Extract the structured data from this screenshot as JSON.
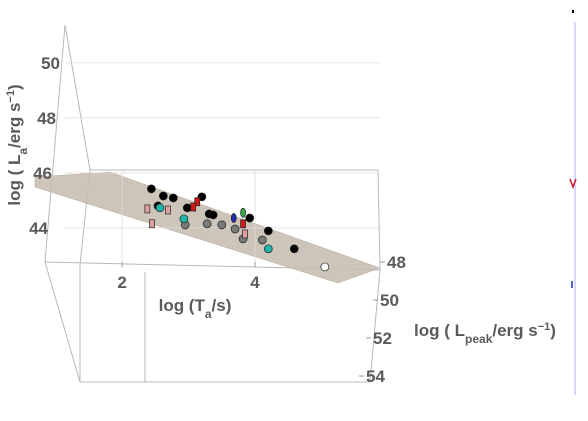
{
  "chart_data": {
    "type": "scatter3d",
    "x_label": [
      "log (T",
      "a",
      "/s)"
    ],
    "y_label": [
      "log ( L",
      "a",
      "/erg s",
      "−1",
      ")"
    ],
    "z_label": [
      "log ( L",
      "peak",
      "/erg s",
      "−1",
      ")"
    ],
    "xlim": [
      0.84,
      5.88
    ],
    "ylim": [
      42.76,
      51.4
    ],
    "zlim": [
      48,
      54
    ],
    "xticks": [
      2,
      4
    ],
    "yticks": [
      44,
      46,
      48,
      50
    ],
    "zticks": [
      48,
      50,
      52,
      54
    ],
    "grid": true,
    "series": [
      {
        "color": "#000000",
        "marker": "circle",
        "x": [
          2.44,
          2.62,
          2.77,
          2.54,
          2.98,
          3.2,
          3.31,
          3.37,
          3.92,
          4.2,
          4.59
        ],
        "y": [
          45.42,
          45.16,
          45.09,
          44.8,
          44.73,
          45.13,
          44.51,
          44.47,
          44.36,
          43.89,
          43.24
        ],
        "z": [
          48,
          48,
          48,
          48,
          48,
          48,
          48,
          48,
          48,
          48,
          48
        ]
      },
      {
        "color": "#d01818",
        "marker": "square",
        "x": [
          3.13,
          3.07,
          3.82
        ],
        "y": [
          44.95,
          44.76,
          44.15
        ],
        "z": [
          48,
          48,
          48
        ]
      },
      {
        "color": "#7a7a7a",
        "marker": "circle",
        "x": [
          3.28,
          3.5,
          3.7,
          3.82,
          4.11,
          2.95
        ],
        "y": [
          44.15,
          44.11,
          43.96,
          43.6,
          43.56,
          44.11
        ],
        "z": [
          48,
          48,
          48,
          48,
          48,
          48
        ]
      },
      {
        "color": "#1fb5a8",
        "marker": "circle",
        "x": [
          2.57,
          2.93,
          4.2
        ],
        "y": [
          44.73,
          44.33,
          43.24
        ],
        "z": [
          48,
          48,
          48
        ]
      },
      {
        "color": "#e0a0a0",
        "marker": "square",
        "x": [
          2.38,
          2.45,
          2.69,
          3.85
        ],
        "y": [
          44.69,
          44.15,
          44.65,
          43.78
        ],
        "z": [
          48,
          48,
          48,
          48
        ]
      },
      {
        "color": "#3aa845",
        "marker": "ellipse",
        "x": [
          3.82
        ],
        "y": [
          44.55
        ],
        "z": [
          48
        ]
      },
      {
        "color": "#1f2fb0",
        "marker": "ellipse",
        "x": [
          3.68
        ],
        "y": [
          44.36
        ],
        "z": [
          48
        ]
      },
      {
        "color": "#ffffff",
        "marker": "circle",
        "x": [
          5.05
        ],
        "y": [
          42.58
        ],
        "z": [
          48
        ]
      }
    ]
  }
}
